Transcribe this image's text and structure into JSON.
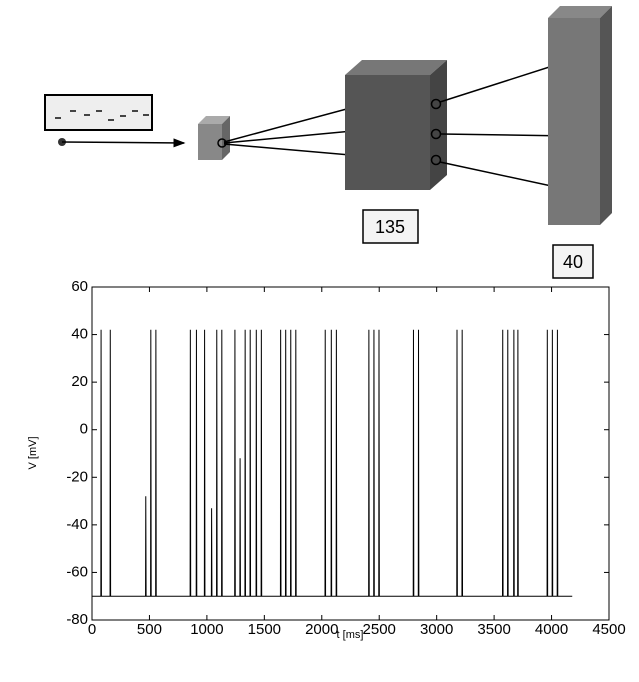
{
  "diagram": {
    "labels": [
      "135",
      "40"
    ]
  },
  "chart_data": {
    "type": "line",
    "xlabel": "t [ms]",
    "ylabel": "V [mV]",
    "xlim": [
      0,
      4500
    ],
    "ylim": [
      -80,
      60
    ],
    "xticks": [
      0,
      500,
      1000,
      1500,
      2000,
      2500,
      3000,
      3500,
      4000,
      4500
    ],
    "yticks": [
      -80,
      -60,
      -40,
      -20,
      0,
      20,
      40,
      60
    ],
    "color": "#000000",
    "x": [
      0,
      77,
      79,
      82,
      157,
      159,
      162,
      466,
      468,
      471,
      510,
      512,
      515,
      554,
      556,
      559,
      854,
      856,
      859,
      907,
      909,
      912,
      978,
      980,
      983,
      1039,
      1041,
      1044,
      1084,
      1086,
      1089,
      1128,
      1130,
      1133,
      1242,
      1244,
      1247,
      1287,
      1289,
      1292,
      1331,
      1333,
      1336,
      1375,
      1377,
      1380,
      1428,
      1430,
      1433,
      1472,
      1474,
      1477,
      1640,
      1642,
      1645,
      1684,
      1686,
      1689,
      1728,
      1730,
      1733,
      1772,
      1774,
      1777,
      2028,
      2030,
      2033,
      2081,
      2083,
      2086,
      2125,
      2127,
      2130,
      2408,
      2410,
      2413,
      2452,
      2454,
      2457,
      2496,
      2498,
      2501,
      2796,
      2798,
      2801,
      2840,
      2842,
      2845,
      3175,
      3177,
      3180,
      3220,
      3222,
      3225,
      3573,
      3575,
      3578,
      3617,
      3619,
      3622,
      3670,
      3672,
      3675,
      3705,
      3707,
      3710,
      3961,
      3963,
      3966,
      4005,
      4007,
      4010,
      4049,
      4051,
      4054,
      4180
    ],
    "values": [
      -70,
      -70,
      42,
      -70,
      -70,
      42,
      -70,
      -70,
      -28,
      -70,
      -70,
      42,
      -70,
      -70,
      42,
      -70,
      -70,
      42,
      -70,
      -70,
      42,
      -70,
      -70,
      42,
      -70,
      -70,
      -33,
      -70,
      -70,
      42,
      -70,
      -70,
      42,
      -70,
      -70,
      42,
      -70,
      -70,
      -12,
      -70,
      -70,
      42,
      -70,
      -70,
      42,
      -70,
      -70,
      42,
      -70,
      -70,
      42,
      -70,
      -70,
      42,
      -70,
      -70,
      42,
      -70,
      -70,
      42,
      -70,
      -70,
      42,
      -70,
      -70,
      42,
      -70,
      -70,
      42,
      -70,
      -70,
      42,
      -70,
      -70,
      42,
      -70,
      -70,
      42,
      -70,
      -70,
      42,
      -70,
      -70,
      42,
      -70,
      -70,
      42,
      -70,
      -70,
      42,
      -70,
      -70,
      42,
      -70,
      -70,
      42,
      -70,
      -70,
      42,
      -70,
      -70,
      42,
      -70,
      -70,
      42,
      -70,
      -70,
      42,
      -70,
      -70,
      42,
      -70,
      -70,
      42,
      -70,
      -70
    ]
  }
}
